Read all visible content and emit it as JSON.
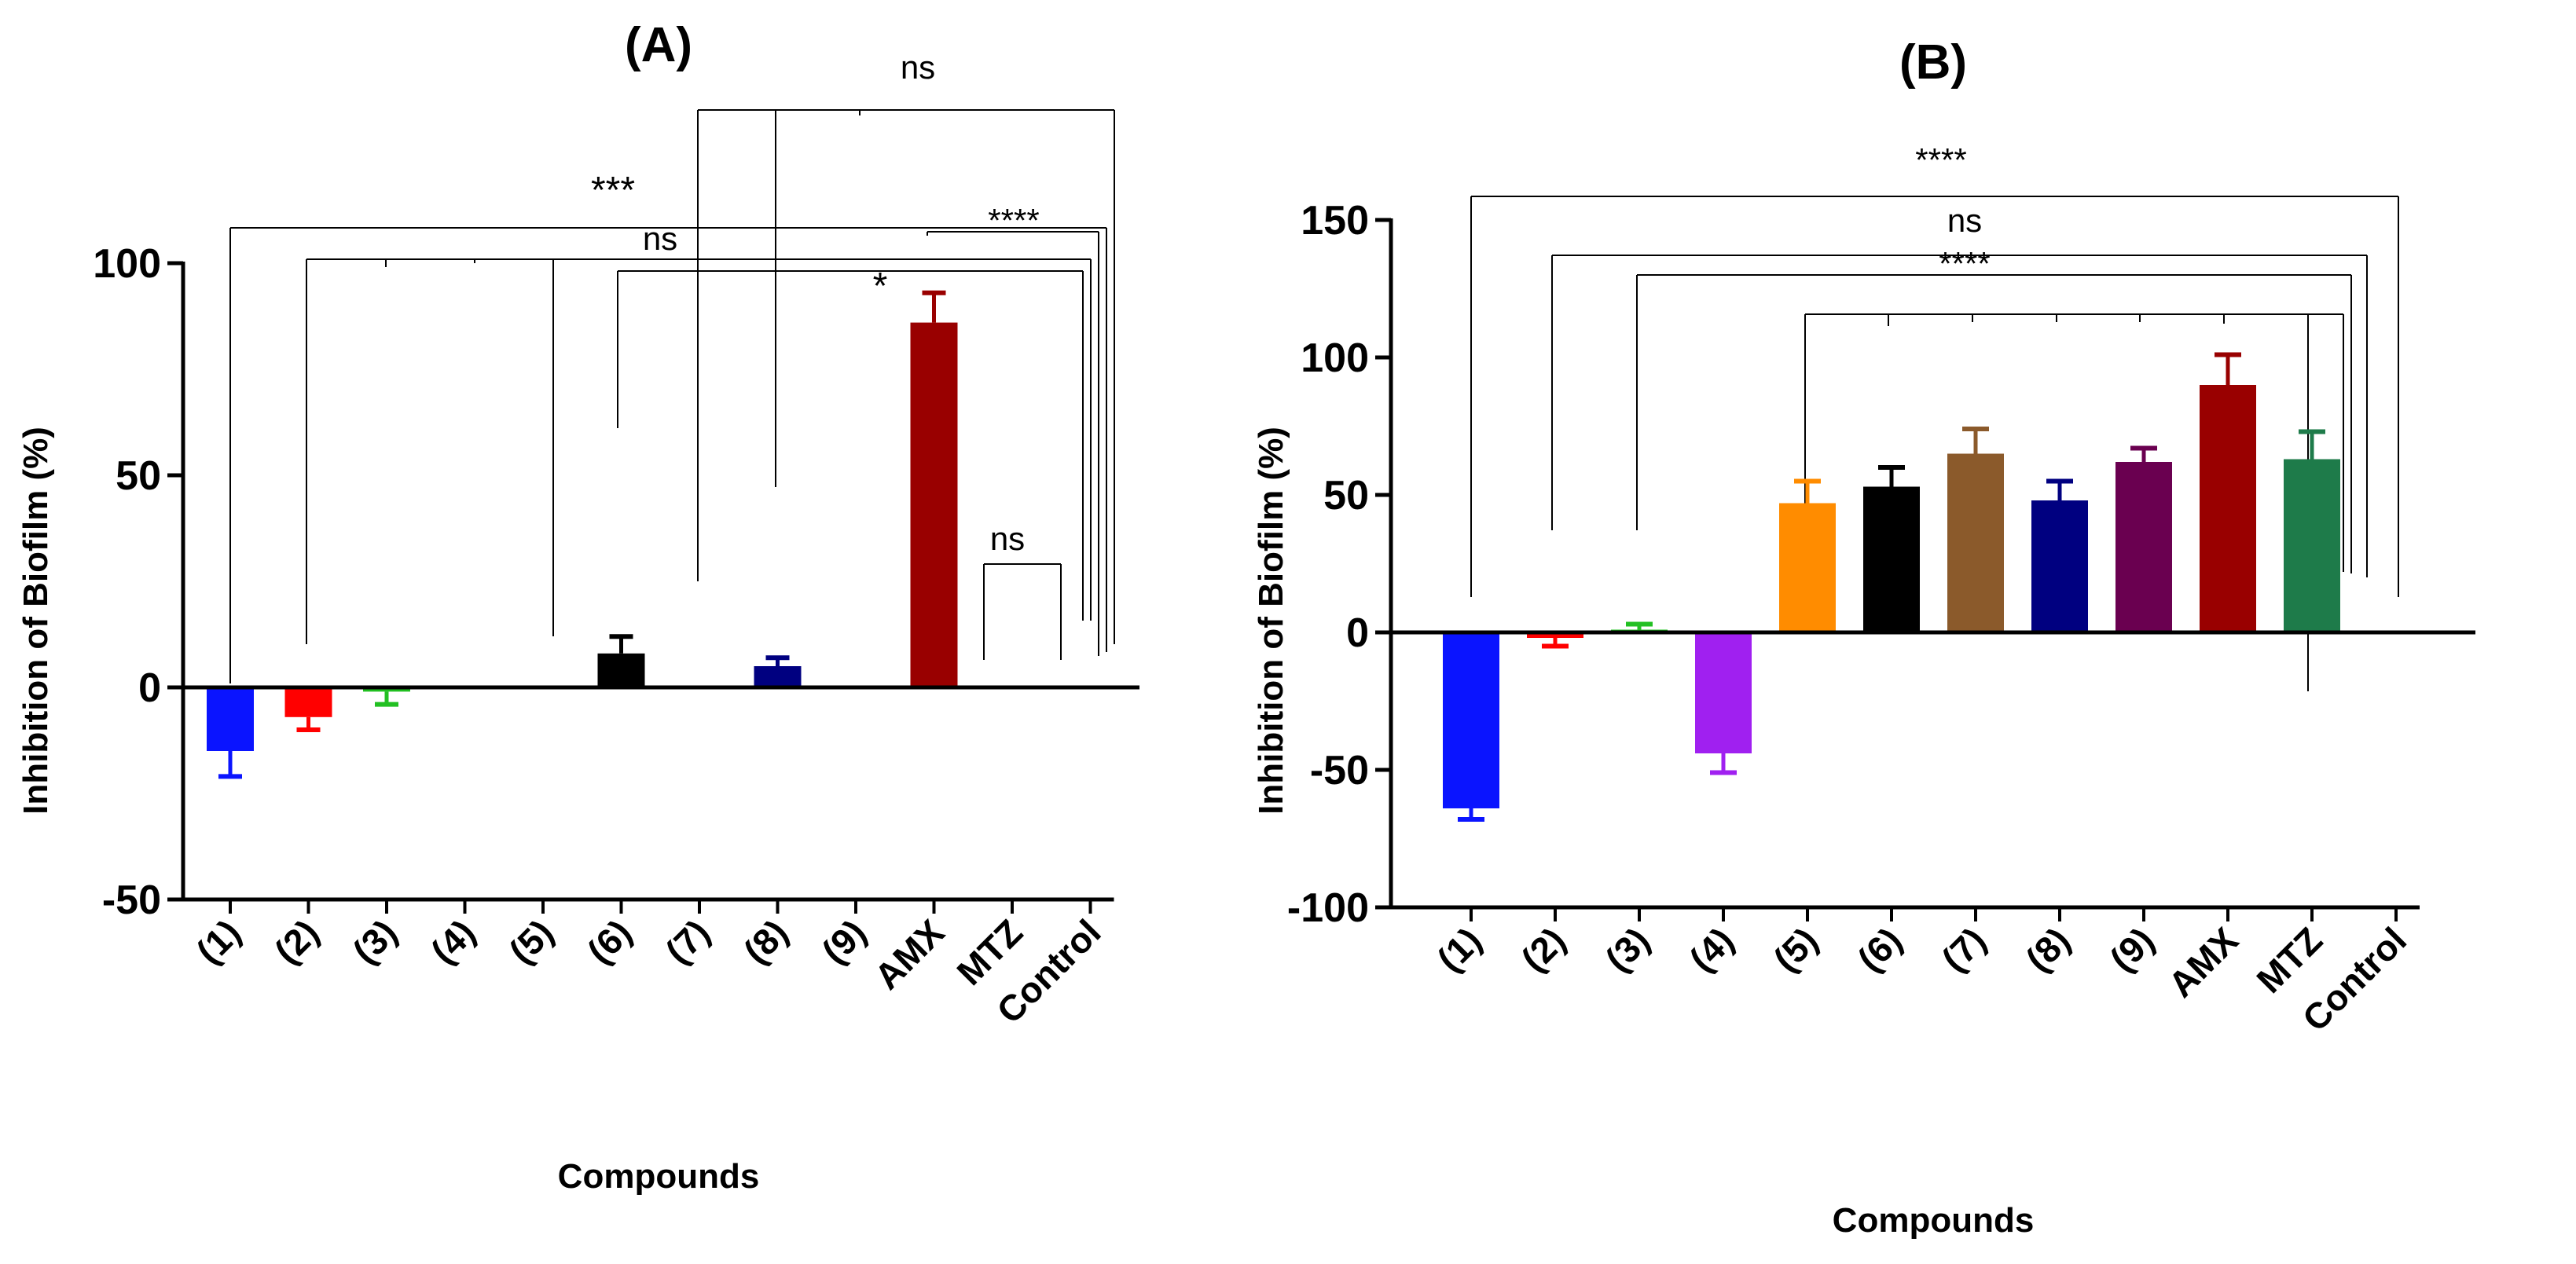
{
  "chart_data": [
    {
      "type": "bar",
      "title": "(A)",
      "xlabel": "Compounds",
      "ylabel": "Inhibition of Biofilm (%)",
      "ylim": [
        -50,
        100
      ],
      "yticks": [
        -50,
        0,
        50,
        100
      ],
      "categories": [
        "(1)",
        "(2)",
        "(3)",
        "(4)",
        "(5)",
        "(6)",
        "(7)",
        "(8)",
        "(9)",
        "AMX",
        "MTZ",
        "Control"
      ],
      "values": [
        -15,
        -7,
        -1,
        0,
        0,
        8,
        0,
        5,
        0,
        86,
        0,
        0
      ],
      "errors": [
        6,
        3,
        3,
        0,
        0,
        4,
        0,
        2,
        0,
        7,
        0,
        0
      ],
      "colors": [
        "#0a14ff",
        "#ff0000",
        "#22c022",
        "#a020f0",
        "#ff8c00",
        "#000000",
        "#8b5a2b",
        "#000080",
        "#6a0050",
        "#990000",
        "#006600",
        "#ffffff"
      ],
      "annotations": [
        {
          "label": "ns",
          "from": "(7)",
          "to": "Control",
          "drops": [
            "(7)",
            "(8)",
            "(9)"
          ]
        },
        {
          "label": "***",
          "from": "(1)",
          "to": "Control"
        },
        {
          "label": "ns",
          "from": "(2)",
          "to": "Control",
          "drops": [
            "(2)",
            "(3)",
            "(4)",
            "(5)"
          ]
        },
        {
          "label": "****",
          "from": "AMX",
          "to": "Control"
        },
        {
          "label": "*",
          "from": "(6)",
          "to": "Control"
        },
        {
          "label": "ns",
          "from": "MTZ",
          "to": "Control"
        }
      ]
    },
    {
      "type": "bar",
      "title": "(B)",
      "xlabel": "Compounds",
      "ylabel": "Inhibition of Biofilm (%)",
      "ylim": [
        -100,
        150
      ],
      "yticks": [
        -100,
        -50,
        0,
        50,
        100,
        150
      ],
      "categories": [
        "(1)",
        "(2)",
        "(3)",
        "(4)",
        "(5)",
        "(6)",
        "(7)",
        "(8)",
        "(9)",
        "AMX",
        "MTZ",
        "Control"
      ],
      "values": [
        -64,
        -2,
        1,
        -44,
        47,
        53,
        65,
        48,
        62,
        90,
        63,
        0
      ],
      "errors": [
        4,
        3,
        2,
        7,
        8,
        7,
        9,
        7,
        5,
        11,
        10,
        0
      ],
      "colors": [
        "#0a14ff",
        "#ff0000",
        "#22c022",
        "#a020f0",
        "#ff8c00",
        "#000000",
        "#8b5a2b",
        "#000080",
        "#6a0050",
        "#990000",
        "#1e7b4a",
        "#ffffff"
      ],
      "annotations": [
        {
          "label": "****",
          "from": "(1)",
          "to": "Control"
        },
        {
          "label": "ns",
          "from": "(2)",
          "to": "Control"
        },
        {
          "label": "****",
          "from": "(5)",
          "to": "Control",
          "drops": [
            "(5)",
            "(6)",
            "(7)",
            "(8)",
            "(9)",
            "AMX",
            "MTZ"
          ]
        },
        {
          "label": "",
          "from": "(3)",
          "to": "Control"
        }
      ]
    }
  ]
}
